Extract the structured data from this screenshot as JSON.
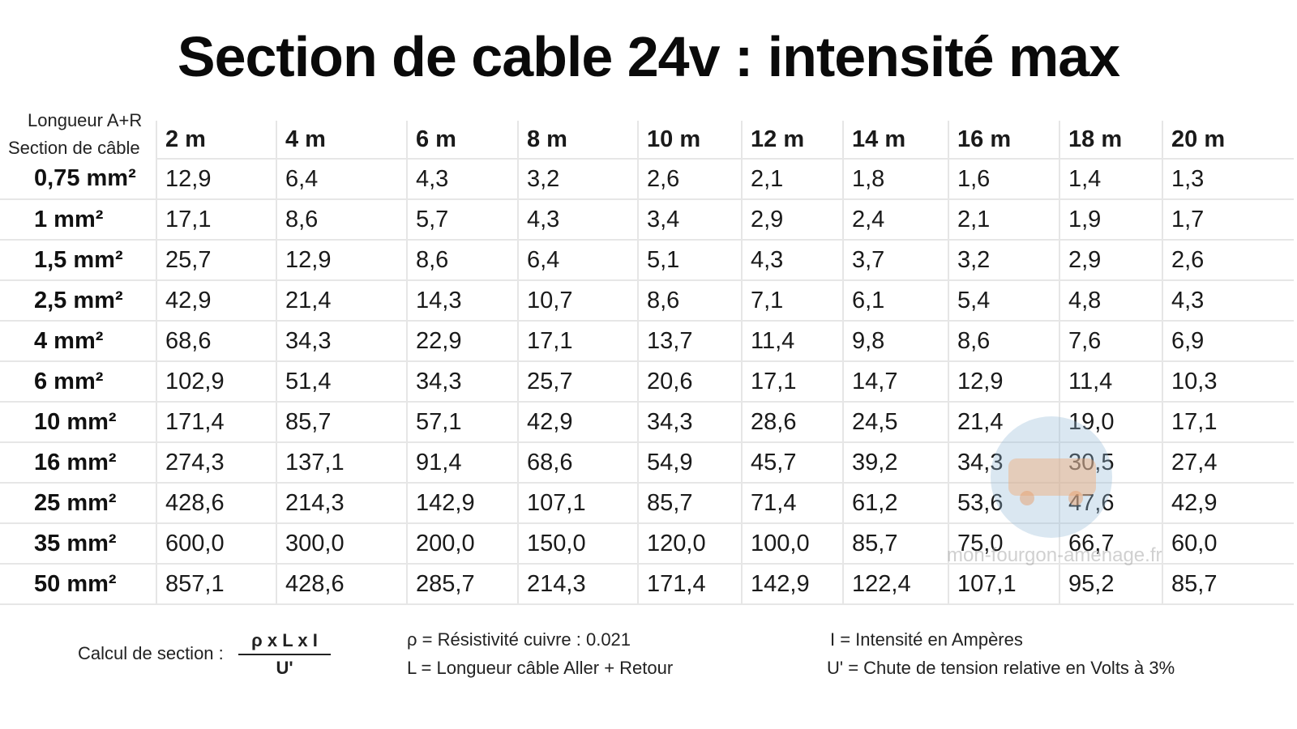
{
  "title": "Section de cable 24v : intensité max",
  "header": {
    "corner_top": "Longueur A+R",
    "corner_bottom": "Section de câble",
    "lengths": [
      "2 m",
      "4 m",
      "6 m",
      "8 m",
      "10 m",
      "12 m",
      "14 m",
      "16 m",
      "18 m",
      "20 m"
    ]
  },
  "rows": [
    {
      "section": "0,75 mm²",
      "values": [
        "12,9",
        "6,4",
        "4,3",
        "3,2",
        "2,6",
        "2,1",
        "1,8",
        "1,6",
        "1,4",
        "1,3"
      ]
    },
    {
      "section": "1 mm²",
      "values": [
        "17,1",
        "8,6",
        "5,7",
        "4,3",
        "3,4",
        "2,9",
        "2,4",
        "2,1",
        "1,9",
        "1,7"
      ]
    },
    {
      "section": "1,5 mm²",
      "values": [
        "25,7",
        "12,9",
        "8,6",
        "6,4",
        "5,1",
        "4,3",
        "3,7",
        "3,2",
        "2,9",
        "2,6"
      ]
    },
    {
      "section": "2,5 mm²",
      "values": [
        "42,9",
        "21,4",
        "14,3",
        "10,7",
        "8,6",
        "7,1",
        "6,1",
        "5,4",
        "4,8",
        "4,3"
      ]
    },
    {
      "section": "4 mm²",
      "values": [
        "68,6",
        "34,3",
        "22,9",
        "17,1",
        "13,7",
        "11,4",
        "9,8",
        "8,6",
        "7,6",
        "6,9"
      ]
    },
    {
      "section": "6 mm²",
      "values": [
        "102,9",
        "51,4",
        "34,3",
        "25,7",
        "20,6",
        "17,1",
        "14,7",
        "12,9",
        "11,4",
        "10,3"
      ]
    },
    {
      "section": "10 mm²",
      "values": [
        "171,4",
        "85,7",
        "57,1",
        "42,9",
        "34,3",
        "28,6",
        "24,5",
        "21,4",
        "19,0",
        "17,1"
      ]
    },
    {
      "section": "16 mm²",
      "values": [
        "274,3",
        "137,1",
        "91,4",
        "68,6",
        "54,9",
        "45,7",
        "39,2",
        "34,3",
        "30,5",
        "27,4"
      ]
    },
    {
      "section": "25 mm²",
      "values": [
        "428,6",
        "214,3",
        "142,9",
        "107,1",
        "85,7",
        "71,4",
        "61,2",
        "53,6",
        "47,6",
        "42,9"
      ]
    },
    {
      "section": "35 mm²",
      "values": [
        "600,0",
        "300,0",
        "200,0",
        "150,0",
        "120,0",
        "100,0",
        "85,7",
        "75,0",
        "66,7",
        "60,0"
      ]
    },
    {
      "section": "50 mm²",
      "values": [
        "857,1",
        "428,6",
        "285,7",
        "214,3",
        "171,4",
        "142,9",
        "122,4",
        "107,1",
        "95,2",
        "85,7"
      ]
    }
  ],
  "formula": {
    "label": "Calcul de section :",
    "numerator": "ρ x L x I",
    "denominator": "U'"
  },
  "legend": {
    "rho": "ρ = Résistivité cuivre : 0.021",
    "length": "L = Longueur câble Aller + Retour",
    "intensity": "I = Intensité en Ampères",
    "voltage_drop": "U' = Chute de tension relative en Volts à 3%"
  },
  "watermark": {
    "text": "mon-fourgon-amenage.fr",
    "icon": "van-logo-icon"
  }
}
